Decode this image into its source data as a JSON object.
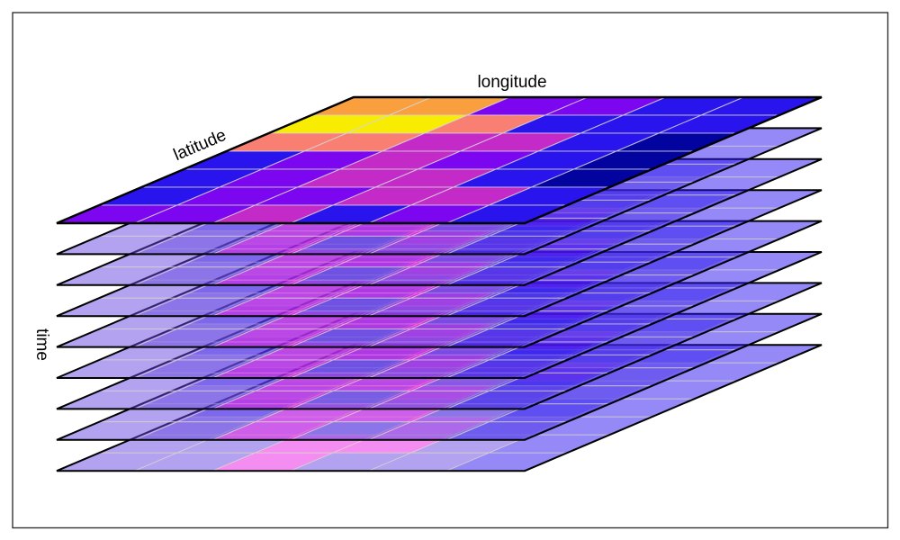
{
  "figure": {
    "axis_labels": {
      "longitude": "longitude",
      "latitude": "latitude",
      "time": "time"
    },
    "layers_count": 9,
    "grid_rows": 7,
    "grid_cols": 6,
    "lower_layer_opacity": 0.5,
    "palette": {
      "orange": "#F99F3E",
      "yellow": "#F8ED02",
      "salmon": "#F97F72",
      "magenta": "#C42AC8",
      "violet": "#7B06EF",
      "blue": "#2A14EE",
      "navy": "#0303A0",
      "violet2": "#6546E2",
      "magenta2": "#E81BE4",
      "outline": "#000000",
      "frame": "#333333",
      "gridline_top": "#D4D4D8",
      "gridline_lower": "#E6E2CC",
      "background": "#FFFFFF"
    },
    "top_layer_grid": [
      [
        "orange",
        "orange",
        "violet",
        "violet",
        "blue",
        "blue"
      ],
      [
        "yellow",
        "yellow",
        "salmon",
        "blue",
        "blue",
        "blue"
      ],
      [
        "salmon",
        "salmon",
        "magenta",
        "magenta",
        "blue",
        "navy"
      ],
      [
        "blue",
        "violet",
        "magenta",
        "violet",
        "blue",
        "navy"
      ],
      [
        "blue",
        "violet",
        "magenta",
        "magenta",
        "blue",
        "navy"
      ],
      [
        "blue",
        "violet",
        "violet",
        "magenta",
        "magenta",
        "blue"
      ],
      [
        "violet",
        "violet",
        "magenta",
        "blue",
        "violet",
        "blue"
      ]
    ],
    "lower_layer_grid": [
      [
        "blue",
        "blue",
        "blue",
        "blue",
        "blue",
        "blue"
      ],
      [
        "violet2",
        "violet2",
        "magenta2",
        "magenta2",
        "violet2",
        "blue"
      ],
      [
        "violet2",
        "violet2",
        "magenta2",
        "violet2",
        "violet2",
        "blue"
      ],
      [
        "blue",
        "violet2",
        "violet2",
        "violet2",
        "blue",
        "blue"
      ],
      [
        "violet2",
        "violet2",
        "violet2",
        "magenta2",
        "violet2",
        "blue"
      ],
      [
        "violet2",
        "violet2",
        "magenta2",
        "magenta2",
        "violet2",
        "blue"
      ],
      [
        "violet2",
        "violet2",
        "magenta2",
        "violet2",
        "violet2",
        "blue"
      ]
    ]
  }
}
